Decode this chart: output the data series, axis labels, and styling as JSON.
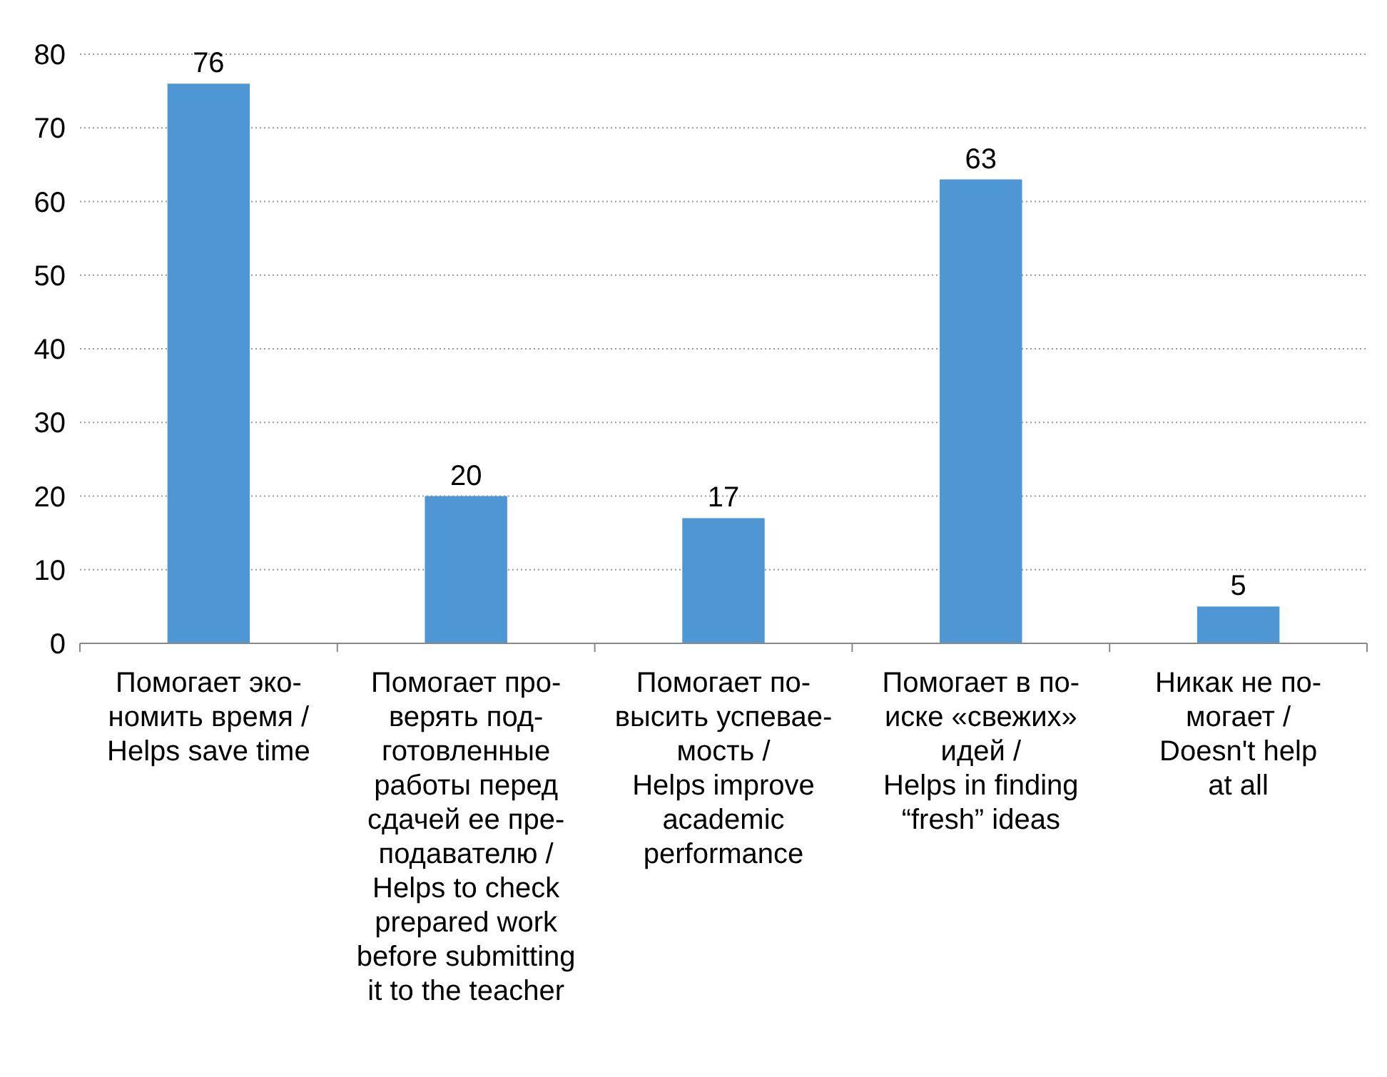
{
  "chart_data": {
    "type": "bar",
    "categories": [
      "Помогает эко-\nномить время /\nHelps save time",
      "Помогает про-\nверять под-\nготовленные\nработы перед\nсдачей ее пре-\nподавателю /\nHelps to check\nprepared work\nbefore submitting\nit to the teacher",
      "Помогает по-\nвысить успевае-\nмость /\nHelps improve\nacademic\nperformance",
      "Помогает в по-\nиске «свежих»\nидей /\nHelps in finding\n“fresh” ideas",
      "Никак не по-\nмогает /\nDoesn't help\nat all"
    ],
    "values": [
      76,
      20,
      17,
      63,
      5
    ],
    "color": "#4f97d4",
    "ylim": [
      0,
      80
    ],
    "yticks": [
      0,
      10,
      20,
      30,
      40,
      50,
      60,
      70,
      80
    ],
    "grid": "y",
    "data_labels": true
  }
}
